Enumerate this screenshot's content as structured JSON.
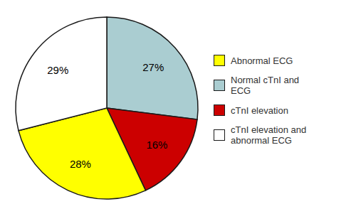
{
  "chart_data": {
    "type": "pie",
    "categories": [
      "Normal cTnI and\nECG",
      "cTnI elevation",
      "Abnormal ECG",
      "cTnI elevation and\nabnormal ECG"
    ],
    "values": [
      27,
      16,
      28,
      29
    ],
    "value_labels": [
      "27%",
      "16%",
      "28%",
      "29%"
    ],
    "colors": [
      "#aacdd1",
      "#cc0000",
      "#ffff00",
      "#ffffff"
    ],
    "data_labels": true,
    "legend": "right"
  }
}
